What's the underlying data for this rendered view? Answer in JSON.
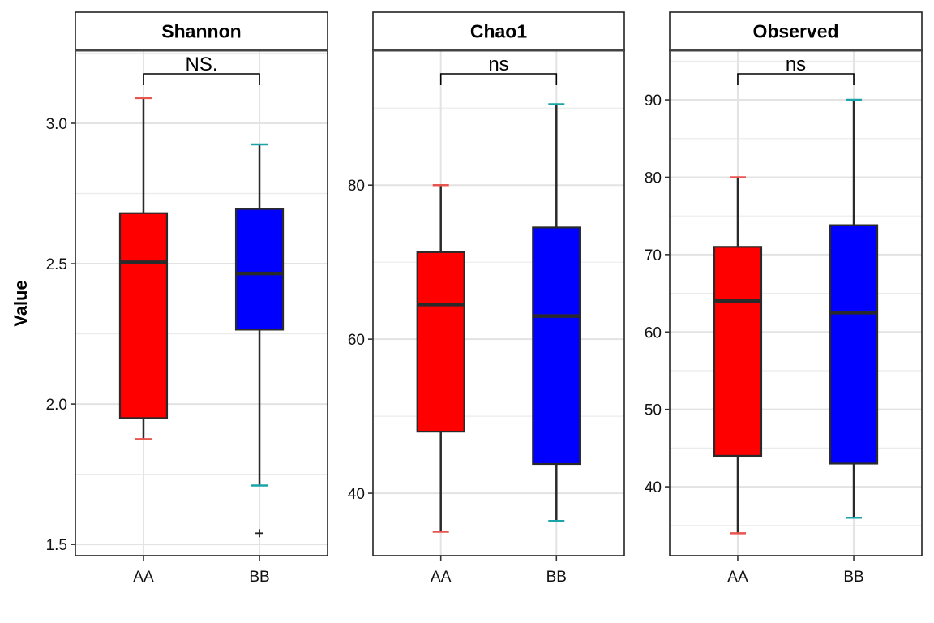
{
  "chart_data": {
    "type": "boxplot",
    "ylabel": "Value",
    "categories": [
      "AA",
      "BB"
    ],
    "fill_colors": {
      "AA": "#ff0000",
      "BB": "#0000ff"
    },
    "whisker_colors": {
      "AA": "#e8554e",
      "BB": "#1aa3a8"
    },
    "panels": [
      {
        "title": "Shannon",
        "significance": "NS.",
        "ylim": [
          1.46,
          3.26
        ],
        "yticks": [
          1.5,
          2.0,
          2.5,
          3.0
        ],
        "ytick_labels": [
          "1.5",
          "2.0",
          "2.5",
          "3.0"
        ],
        "boxes": [
          {
            "group": "AA",
            "min": 1.875,
            "q1": 1.95,
            "median": 2.505,
            "q3": 2.68,
            "max": 3.09,
            "outliers": []
          },
          {
            "group": "BB",
            "min": 1.71,
            "q1": 2.265,
            "median": 2.465,
            "q3": 2.695,
            "max": 2.925,
            "outliers": [
              1.54
            ]
          }
        ]
      },
      {
        "title": "Chao1",
        "significance": "ns",
        "ylim": [
          31.9,
          97.5
        ],
        "yticks": [
          40,
          60,
          80
        ],
        "ytick_labels": [
          "40",
          "60",
          "80"
        ],
        "boxes": [
          {
            "group": "AA",
            "min": 35,
            "q1": 48,
            "median": 64.5,
            "q3": 71.3,
            "max": 80,
            "outliers": []
          },
          {
            "group": "BB",
            "min": 36.4,
            "q1": 43.8,
            "median": 63,
            "q3": 74.5,
            "max": 90.5,
            "outliers": []
          }
        ]
      },
      {
        "title": "Observed",
        "significance": "ns",
        "ylim": [
          31.1,
          96.4
        ],
        "yticks": [
          40,
          50,
          60,
          70,
          80,
          90
        ],
        "ytick_labels": [
          "40",
          "50",
          "60",
          "70",
          "80",
          "90"
        ],
        "boxes": [
          {
            "group": "AA",
            "min": 34,
            "q1": 44,
            "median": 64,
            "q3": 71,
            "max": 80,
            "outliers": []
          },
          {
            "group": "BB",
            "min": 36,
            "q1": 43,
            "median": 62.5,
            "q3": 73.8,
            "max": 90,
            "outliers": []
          }
        ]
      }
    ]
  }
}
